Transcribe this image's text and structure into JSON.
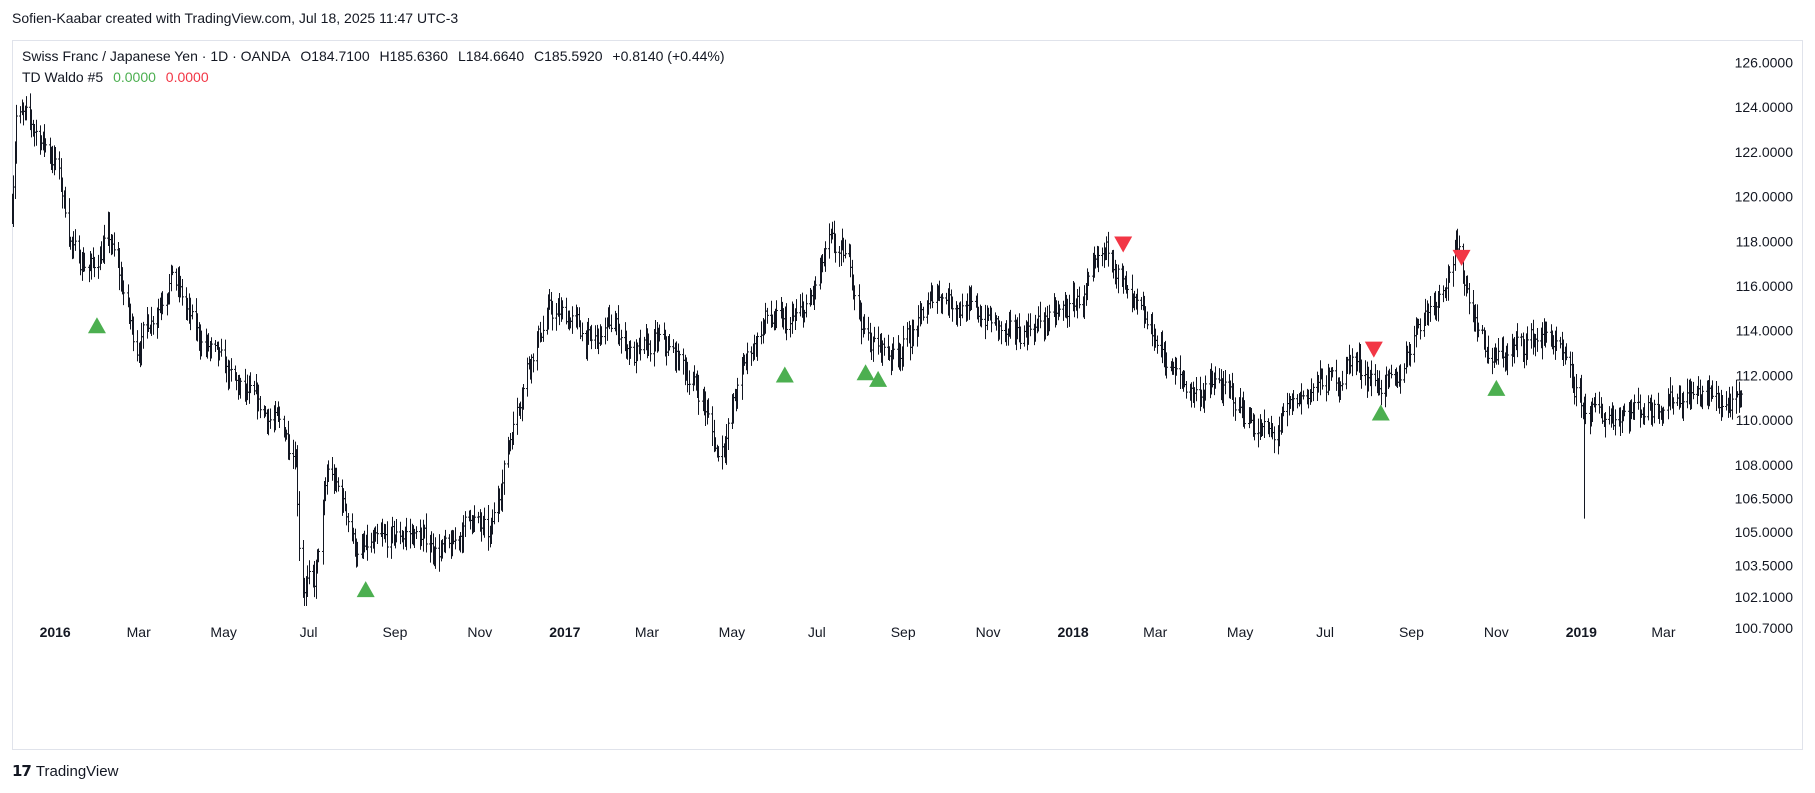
{
  "credit": "Sofien-Kaabar created with TradingView.com, Jul 18, 2025 11:47 UTC-3",
  "legend": {
    "symbol": "Swiss Franc / Japanese Yen · 1D · OANDA",
    "open": "O184.7100",
    "high": "H185.6360",
    "low": "L184.6640",
    "close": "C185.5920",
    "change": "+0.8140 (+0.44%)",
    "indicator": "TD Waldo #5",
    "ind_val1": "0.0000",
    "ind_val2": "0.0000"
  },
  "footer": {
    "logo": "𝟭𝟳",
    "brand": "TradingView"
  },
  "colors": {
    "bar": "#131722",
    "buy": "#4caf50",
    "sell": "#f23645",
    "grid": "#e0e3eb",
    "text": "#131722"
  },
  "chart_data": {
    "type": "ohlc-bar",
    "x_range": [
      "2015-12-01",
      "2019-04-30"
    ],
    "ylim": [
      99.5,
      127
    ],
    "y_ticks": [
      126.0,
      124.0,
      122.0,
      120.0,
      118.0,
      116.0,
      114.0,
      112.0,
      110.0,
      108.0,
      106.5,
      105.0,
      103.5,
      102.1,
      100.7
    ],
    "y_tick_labels": [
      "126.0000",
      "124.0000",
      "122.0000",
      "120.0000",
      "118.0000",
      "116.0000",
      "114.0000",
      "112.0000",
      "110.0000",
      "108.0000",
      "106.5000",
      "105.0000",
      "103.5000",
      "102.1000",
      "100.7000"
    ],
    "x_ticks": [
      {
        "date": "2016-01-01",
        "label": "2016",
        "bold": true
      },
      {
        "date": "2016-03-01",
        "label": "Mar"
      },
      {
        "date": "2016-05-01",
        "label": "May"
      },
      {
        "date": "2016-07-01",
        "label": "Jul"
      },
      {
        "date": "2016-09-01",
        "label": "Sep"
      },
      {
        "date": "2016-11-01",
        "label": "Nov"
      },
      {
        "date": "2017-01-01",
        "label": "2017",
        "bold": true
      },
      {
        "date": "2017-03-01",
        "label": "Mar"
      },
      {
        "date": "2017-05-01",
        "label": "May"
      },
      {
        "date": "2017-07-01",
        "label": "Jul"
      },
      {
        "date": "2017-09-01",
        "label": "Sep"
      },
      {
        "date": "2017-11-01",
        "label": "Nov"
      },
      {
        "date": "2018-01-01",
        "label": "2018",
        "bold": true
      },
      {
        "date": "2018-03-01",
        "label": "Mar"
      },
      {
        "date": "2018-05-01",
        "label": "May"
      },
      {
        "date": "2018-07-01",
        "label": "Jul"
      },
      {
        "date": "2018-09-01",
        "label": "Sep"
      },
      {
        "date": "2018-11-01",
        "label": "Nov"
      },
      {
        "date": "2019-01-01",
        "label": "2019",
        "bold": true
      },
      {
        "date": "2019-03-01",
        "label": "Mar"
      }
    ],
    "price_path": [
      [
        "2015-12-01",
        119.5
      ],
      [
        "2015-12-04",
        123.8
      ],
      [
        "2015-12-20",
        122.8
      ],
      [
        "2016-01-02",
        121.5
      ],
      [
        "2016-01-14",
        117.5
      ],
      [
        "2016-01-28",
        116.8
      ],
      [
        "2016-02-08",
        118.2
      ],
      [
        "2016-02-19",
        115.8
      ],
      [
        "2016-02-28",
        113.2
      ],
      [
        "2016-03-10",
        114.6
      ],
      [
        "2016-03-25",
        116.6
      ],
      [
        "2016-04-10",
        114.0
      ],
      [
        "2016-04-25",
        112.8
      ],
      [
        "2016-05-10",
        111.5
      ],
      [
        "2016-05-28",
        110.5
      ],
      [
        "2016-06-14",
        109.5
      ],
      [
        "2016-06-22",
        108.6
      ],
      [
        "2016-06-25",
        102.8
      ],
      [
        "2016-07-05",
        102.6
      ],
      [
        "2016-07-15",
        107.8
      ],
      [
        "2016-07-28",
        106.0
      ],
      [
        "2016-08-05",
        104.0
      ],
      [
        "2016-08-20",
        104.4
      ],
      [
        "2016-09-10",
        105.0
      ],
      [
        "2016-09-25",
        104.5
      ],
      [
        "2016-10-10",
        104.0
      ],
      [
        "2016-10-25",
        105.8
      ],
      [
        "2016-11-08",
        104.6
      ],
      [
        "2016-11-20",
        108.5
      ],
      [
        "2016-12-05",
        112.5
      ],
      [
        "2016-12-20",
        114.8
      ],
      [
        "2017-01-05",
        114.6
      ],
      [
        "2017-01-20",
        113.4
      ],
      [
        "2017-02-05",
        114.4
      ],
      [
        "2017-02-20",
        112.8
      ],
      [
        "2017-03-10",
        113.5
      ],
      [
        "2017-03-25",
        112.6
      ],
      [
        "2017-04-10",
        111.0
      ],
      [
        "2017-04-20",
        108.6
      ],
      [
        "2017-04-25",
        109.0
      ],
      [
        "2017-05-10",
        112.5
      ],
      [
        "2017-05-25",
        114.5
      ],
      [
        "2017-06-10",
        114.2
      ],
      [
        "2017-06-25",
        115.0
      ],
      [
        "2017-07-10",
        117.8
      ],
      [
        "2017-07-25",
        117.0
      ],
      [
        "2017-08-05",
        113.6
      ],
      [
        "2017-08-25",
        113.0
      ],
      [
        "2017-09-10",
        114.0
      ],
      [
        "2017-09-25",
        115.8
      ],
      [
        "2017-10-15",
        115.0
      ],
      [
        "2017-11-01",
        114.6
      ],
      [
        "2017-11-15",
        113.6
      ],
      [
        "2017-12-01",
        114.2
      ],
      [
        "2017-12-20",
        114.6
      ],
      [
        "2018-01-10",
        115.6
      ],
      [
        "2018-01-28",
        117.8
      ],
      [
        "2018-02-10",
        115.2
      ],
      [
        "2018-02-28",
        113.8
      ],
      [
        "2018-03-15",
        112.0
      ],
      [
        "2018-03-30",
        111.2
      ],
      [
        "2018-04-15",
        111.6
      ],
      [
        "2018-05-01",
        110.6
      ],
      [
        "2018-05-15",
        109.6
      ],
      [
        "2018-05-25",
        109.2
      ],
      [
        "2018-06-10",
        110.8
      ],
      [
        "2018-06-25",
        111.6
      ],
      [
        "2018-07-10",
        111.8
      ],
      [
        "2018-07-20",
        112.8
      ],
      [
        "2018-08-05",
        111.8
      ],
      [
        "2018-08-20",
        111.3
      ],
      [
        "2018-09-05",
        114.4
      ],
      [
        "2018-09-20",
        115.6
      ],
      [
        "2018-10-03",
        117.6
      ],
      [
        "2018-10-15",
        115.0
      ],
      [
        "2018-10-28",
        112.6
      ],
      [
        "2018-11-10",
        113.0
      ],
      [
        "2018-11-25",
        113.6
      ],
      [
        "2018-12-10",
        113.8
      ],
      [
        "2018-12-28",
        111.2
      ],
      [
        "2019-01-03",
        110.5
      ],
      [
        "2019-01-15",
        110.2
      ],
      [
        "2019-02-01",
        110.4
      ],
      [
        "2019-02-20",
        110.6
      ],
      [
        "2019-03-05",
        111.0
      ],
      [
        "2019-03-25",
        111.2
      ],
      [
        "2019-04-15",
        110.8
      ],
      [
        "2019-04-28",
        110.5
      ]
    ],
    "spike_low": {
      "date": "2019-01-03",
      "low": 105.6
    },
    "buy_signals": [
      {
        "date": "2016-01-31",
        "y": 114.2
      },
      {
        "date": "2016-08-11",
        "y": 102.4
      },
      {
        "date": "2017-06-08",
        "y": 112.0
      },
      {
        "date": "2017-08-05",
        "y": 112.1
      },
      {
        "date": "2017-08-14",
        "y": 111.8
      },
      {
        "date": "2018-08-10",
        "y": 110.3
      },
      {
        "date": "2018-11-01",
        "y": 111.4
      }
    ],
    "sell_signals": [
      {
        "date": "2018-02-06",
        "y": 117.9
      },
      {
        "date": "2018-08-05",
        "y": 113.2
      },
      {
        "date": "2018-10-07",
        "y": 117.3
      }
    ]
  }
}
